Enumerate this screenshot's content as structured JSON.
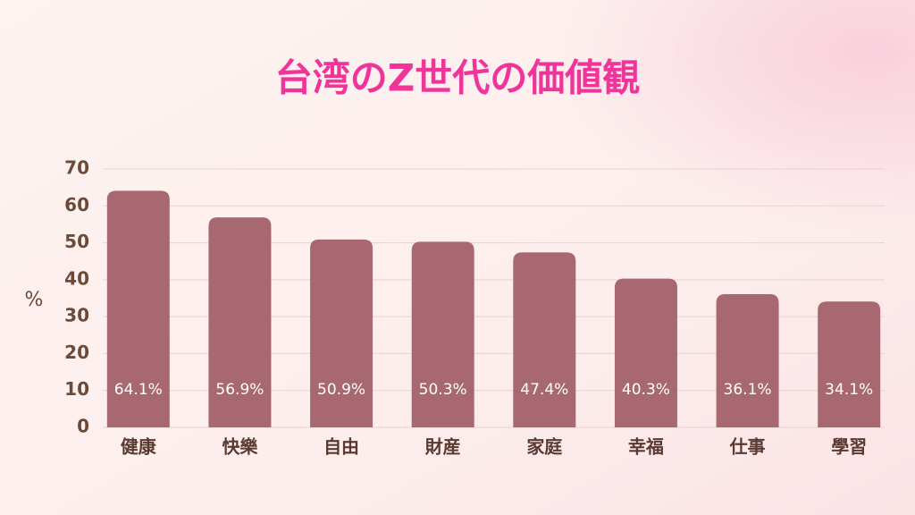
{
  "chart_data": {
    "type": "bar",
    "title": "台湾のZ世代の価値観",
    "y_label": "%",
    "categories": [
      "健康",
      "快樂",
      "自由",
      "財産",
      "家庭",
      "幸福",
      "仕事",
      "學習"
    ],
    "values": [
      64.1,
      56.9,
      50.9,
      50.3,
      47.4,
      40.3,
      36.1,
      34.1
    ],
    "value_labels": [
      "64.1%",
      "56.9%",
      "50.9%",
      "50.3%",
      "47.4%",
      "40.3%",
      "36.1%",
      "34.1%"
    ],
    "color": "#a86872",
    "ylim": [
      0,
      70
    ],
    "yticks": [
      0,
      10,
      20,
      30,
      40,
      50,
      60,
      70
    ],
    "grid": true
  }
}
